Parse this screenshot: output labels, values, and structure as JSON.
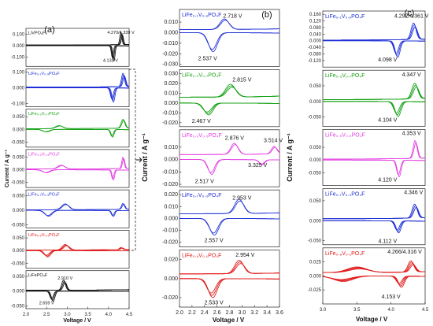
{
  "colors": {
    "black": "#111111",
    "blue": "#1e2fd6",
    "green": "#12a012",
    "magenta": "#e23ae2",
    "red": "#e01818"
  },
  "chart_data": [
    {
      "type": "line",
      "panel_letter": "(a)",
      "xlabel": "Voltage / V",
      "ylabel": "Current / A g⁻¹",
      "xlim": [
        2.0,
        4.5
      ],
      "xticks": [
        "2.0",
        "2.5",
        "3.0",
        "3.5",
        "4.0",
        "4.5"
      ],
      "subpanels": [
        {
          "label": "LiVPO₄F",
          "color": "#111111",
          "ylim": [
            -0.18,
            0.15
          ],
          "yticks": [
            {
              "v": 0.1,
              "t": "0.100"
            },
            {
              "v": 0.0,
              "t": "0.000"
            },
            {
              "v": -0.1,
              "t": "-0.100"
            }
          ],
          "annotations": [
            {
              "text": "4.270/4.339 V",
              "x": 4.3,
              "y": 0.11
            },
            {
              "text": "4.133 V",
              "x": 4.05,
              "y": -0.14
            }
          ],
          "peaks": [
            {
              "v": 4.3,
              "h": 0.11,
              "w": 0.035
            },
            {
              "v": 4.133,
              "h": -0.135,
              "w": 0.035
            }
          ],
          "base": [
            0.0,
            0.005
          ],
          "cycles": 3
        },
        {
          "label": "LiFe₀.₁V₀.₉PO₄F",
          "color": "#1e2fd6",
          "ylim": [
            -0.12,
            0.12
          ],
          "yticks": [
            {
              "v": 0.1,
              "t": "0.100"
            },
            {
              "v": 0.0,
              "t": "0.000"
            },
            {
              "v": -0.1,
              "t": "-0.100"
            }
          ],
          "annotations": [],
          "peaks": [
            {
              "v": 4.35,
              "h": 0.085,
              "w": 0.05
            },
            {
              "v": 4.12,
              "h": -0.09,
              "w": 0.05
            }
          ],
          "base": [
            0.0,
            0.004
          ],
          "cycles": 3
        },
        {
          "label": "LiFe₀.₃V₀.₇PO₄F",
          "color": "#12a012",
          "ylim": [
            -0.07,
            0.08
          ],
          "yticks": [
            {
              "v": 0.05,
              "t": "0.050"
            },
            {
              "v": 0.0,
              "t": "0.000"
            },
            {
              "v": -0.05,
              "t": "-0.050"
            }
          ],
          "annotations": [],
          "peaks": [
            {
              "v": 4.35,
              "h": 0.035,
              "w": 0.06
            },
            {
              "v": 4.1,
              "h": -0.03,
              "w": 0.05
            },
            {
              "v": 2.8,
              "h": 0.012,
              "w": 0.12
            },
            {
              "v": 2.5,
              "h": -0.01,
              "w": 0.12
            }
          ],
          "base": [
            0.0,
            0.003
          ],
          "cycles": 2
        },
        {
          "label": "LiFe₀.₅V₀.₅PO₄F",
          "color": "#e23ae2",
          "ylim": [
            -0.07,
            0.08
          ],
          "yticks": [
            {
              "v": 0.05,
              "t": "0.050"
            },
            {
              "v": 0.0,
              "t": "0.000"
            },
            {
              "v": -0.05,
              "t": "-0.050"
            }
          ],
          "annotations": [],
          "peaks": [
            {
              "v": 4.35,
              "h": 0.045,
              "w": 0.04
            },
            {
              "v": 4.12,
              "h": -0.04,
              "w": 0.04
            },
            {
              "v": 2.85,
              "h": 0.015,
              "w": 0.12
            },
            {
              "v": 2.5,
              "h": -0.012,
              "w": 0.12
            }
          ],
          "base": [
            0.0,
            0.003
          ],
          "cycles": 2
        },
        {
          "label": "LiFe₀.₇V₀.₃PO₄F",
          "color": "#1e2fd6",
          "ylim": [
            -0.06,
            0.07
          ],
          "yticks": [
            {
              "v": 0.05,
              "t": "0.050"
            },
            {
              "v": 0.0,
              "t": "0.000"
            },
            {
              "v": -0.05,
              "t": "-0.050"
            }
          ],
          "annotations": [],
          "peaks": [
            {
              "v": 4.35,
              "h": 0.02,
              "w": 0.05
            },
            {
              "v": 4.12,
              "h": -0.02,
              "w": 0.05
            },
            {
              "v": 2.95,
              "h": 0.02,
              "w": 0.12
            },
            {
              "v": 2.55,
              "h": -0.02,
              "w": 0.12
            }
          ],
          "base": [
            0.0,
            0.002
          ],
          "cycles": 2
        },
        {
          "label": "LiFe₀.₉V₀.₁PO₄F",
          "color": "#e01818",
          "ylim": [
            -0.07,
            0.08
          ],
          "yticks": [
            {
              "v": 0.05,
              "t": "0.050"
            },
            {
              "v": 0.0,
              "t": "0.000"
            },
            {
              "v": -0.05,
              "t": "-0.050"
            }
          ],
          "annotations": [],
          "peaks": [
            {
              "v": 2.95,
              "h": 0.022,
              "w": 0.1
            },
            {
              "v": 2.53,
              "h": -0.025,
              "w": 0.1
            },
            {
              "v": 4.3,
              "h": 0.008,
              "w": 0.05
            }
          ],
          "base": [
            0.0,
            0.002
          ],
          "cycles": 3
        },
        {
          "label": "LiFePO₄F",
          "color": "#111111",
          "ylim": [
            -0.06,
            0.07
          ],
          "yticks": [
            {
              "v": 0.05,
              "t": "0.050"
            },
            {
              "v": 0.0,
              "t": "0.000"
            },
            {
              "v": -0.05,
              "t": "-0.050"
            }
          ],
          "annotations": [
            {
              "text": "2.910 V",
              "x": 2.95,
              "y": 0.04
            },
            {
              "text": "2.659 V",
              "x": 2.5,
              "y": -0.045
            }
          ],
          "peaks": [
            {
              "v": 2.91,
              "h": 0.035,
              "w": 0.06
            },
            {
              "v": 2.659,
              "h": -0.035,
              "w": 0.06
            }
          ],
          "base": [
            0.0,
            0.003
          ],
          "cycles": 3
        }
      ]
    },
    {
      "type": "line",
      "panel_letter": "(b)",
      "xlabel": "Voltage / V",
      "ylabel": "Current / A g⁻¹",
      "xlim": [
        2.0,
        3.6
      ],
      "xticks": [
        "2.0",
        "2.2",
        "2.4",
        "2.6",
        "2.8",
        "3.0",
        "3.2",
        "3.4",
        "3.6"
      ],
      "subpanels": [
        {
          "label": "LiFe₀.₁V₀.₉PO₄F",
          "color": "#1e2fd6",
          "ylim": [
            -0.032,
            0.022
          ],
          "yticks": [
            {
              "v": 0.01,
              "t": "0.010"
            },
            {
              "v": 0.0,
              "t": "0.000"
            },
            {
              "v": -0.01,
              "t": "-0.010"
            },
            {
              "v": -0.02,
              "t": "-0.020"
            },
            {
              "v": -0.03,
              "t": "-0.030"
            }
          ],
          "annotations": [
            {
              "text": "2.718 V",
              "x": 2.85,
              "y": 0.014
            },
            {
              "text": "2.537 V",
              "x": 2.45,
              "y": -0.026
            }
          ],
          "peaks": [
            {
              "v": 2.718,
              "h": 0.01,
              "w": 0.1
            },
            {
              "v": 2.537,
              "h": -0.018,
              "w": 0.1
            }
          ],
          "base": [
            0.0,
            0.003
          ],
          "cycles": 2
        },
        {
          "label": "LiFe₀.₃V₀.₇PO₄F",
          "color": "#12a012",
          "ylim": [
            -0.024,
            0.034
          ],
          "yticks": [
            {
              "v": 0.03,
              "t": "0.030"
            },
            {
              "v": 0.02,
              "t": "0.020"
            },
            {
              "v": 0.01,
              "t": "0.010"
            },
            {
              "v": 0.0,
              "t": "0.000"
            },
            {
              "v": -0.01,
              "t": "-0.010"
            },
            {
              "v": -0.02,
              "t": "-0.020"
            }
          ],
          "annotations": [
            {
              "text": "2.815 V",
              "x": 3.0,
              "y": 0.022
            },
            {
              "text": "2.467 V",
              "x": 2.35,
              "y": -0.02
            }
          ],
          "peaks": [
            {
              "v": 2.815,
              "h": 0.013,
              "w": 0.11
            },
            {
              "v": 2.467,
              "h": -0.012,
              "w": 0.1
            }
          ],
          "base": [
            0.0,
            0.006
          ],
          "cycles": 3
        },
        {
          "label": "LiFe₀.₅V₀.₅PO₄F",
          "color": "#e23ae2",
          "ylim": [
            -0.022,
            0.024
          ],
          "yticks": [
            {
              "v": 0.01,
              "t": "0.010"
            },
            {
              "v": 0.0,
              "t": "0.000"
            },
            {
              "v": -0.01,
              "t": "-0.010"
            },
            {
              "v": -0.02,
              "t": "-0.020"
            }
          ],
          "annotations": [
            {
              "text": "2.876 V",
              "x": 2.88,
              "y": 0.016
            },
            {
              "text": "3.514 V",
              "x": 3.5,
              "y": 0.014
            },
            {
              "text": "3.325 V",
              "x": 3.25,
              "y": -0.006
            },
            {
              "text": "2.517 V",
              "x": 2.4,
              "y": -0.019
            }
          ],
          "peaks": [
            {
              "v": 2.876,
              "h": 0.009,
              "w": 0.08
            },
            {
              "v": 2.517,
              "h": -0.012,
              "w": 0.08
            },
            {
              "v": 3.514,
              "h": 0.006,
              "w": 0.06
            },
            {
              "v": 3.325,
              "h": -0.004,
              "w": 0.06
            }
          ],
          "base": [
            0.0,
            0.004
          ],
          "cycles": 2
        },
        {
          "label": "LiFe₀.₇V₀.₃PO₄F",
          "color": "#1e2fd6",
          "ylim": [
            -0.024,
            0.024
          ],
          "yticks": [
            {
              "v": 0.02,
              "t": "0.020"
            },
            {
              "v": 0.01,
              "t": "0.010"
            },
            {
              "v": 0.0,
              "t": "0.000"
            },
            {
              "v": -0.01,
              "t": "-0.010"
            },
            {
              "v": -0.02,
              "t": "-0.020"
            }
          ],
          "annotations": [
            {
              "text": "2.953 V",
              "x": 3.0,
              "y": 0.016
            },
            {
              "text": "2.557 V",
              "x": 2.55,
              "y": -0.02
            }
          ],
          "peaks": [
            {
              "v": 2.953,
              "h": 0.012,
              "w": 0.1
            },
            {
              "v": 2.557,
              "h": -0.014,
              "w": 0.1
            }
          ],
          "base": [
            0.0,
            0.004
          ],
          "cycles": 2
        },
        {
          "label": "LiFe₀.₉V₀.₁PO₄F",
          "color": "#e01818",
          "ylim": [
            -0.03,
            0.03
          ],
          "yticks": [
            {
              "v": 0.02,
              "t": "0.020"
            },
            {
              "v": 0.0,
              "t": "0.000"
            },
            {
              "v": -0.02,
              "t": "-0.020"
            }
          ],
          "annotations": [
            {
              "text": "2.954 V",
              "x": 3.05,
              "y": 0.023
            },
            {
              "text": "2.533 V",
              "x": 2.55,
              "y": -0.027
            }
          ],
          "peaks": [
            {
              "v": 2.954,
              "h": 0.014,
              "w": 0.1
            },
            {
              "v": 2.533,
              "h": -0.02,
              "w": 0.1
            }
          ],
          "base": [
            0.0,
            0.005
          ],
          "cycles": 3
        }
      ]
    },
    {
      "type": "line",
      "panel_letter": "(c)",
      "xlabel": "Voltage / V",
      "ylabel": "Current / A g⁻¹",
      "xlim": [
        3.0,
        4.5
      ],
      "xticks": [
        "3.0",
        "3.5",
        "4.0",
        "4.5"
      ],
      "subpanels": [
        {
          "label": "LiFe₀.₁V₀.₉PO₄F",
          "color": "#1e2fd6",
          "ylim": [
            -0.16,
            0.18
          ],
          "yticks": [
            {
              "v": 0.16,
              "t": "0.160"
            },
            {
              "v": 0.12,
              "t": "0.120"
            },
            {
              "v": 0.08,
              "t": "0.080"
            },
            {
              "v": 0.04,
              "t": "0.040"
            },
            {
              "v": 0.0,
              "t": "0.000"
            },
            {
              "v": -0.04,
              "t": "-0.040"
            },
            {
              "v": -0.08,
              "t": "-0.080"
            },
            {
              "v": -0.12,
              "t": "-0.120"
            }
          ],
          "annotations": [
            {
              "text": "4.292/4.361 V",
              "x": 4.3,
              "y": 0.14
            },
            {
              "text": "4.098 V",
              "x": 3.95,
              "y": -0.125
            }
          ],
          "peaks": [
            {
              "v": 4.33,
              "h": 0.1,
              "w": 0.05
            },
            {
              "v": 4.098,
              "h": -0.1,
              "w": 0.05
            }
          ],
          "base": [
            0.0,
            0.004
          ],
          "cycles": 3
        },
        {
          "label": "LiFe₀.₃V₀.₇PO₄F",
          "color": "#12a012",
          "ylim": [
            -0.08,
            0.1
          ],
          "yticks": [
            {
              "v": 0.05,
              "t": "0.050"
            },
            {
              "v": 0.0,
              "t": "0.000"
            },
            {
              "v": -0.05,
              "t": "-0.050"
            }
          ],
          "annotations": [
            {
              "text": "4.347 V",
              "x": 4.3,
              "y": 0.08
            },
            {
              "text": "4.104 V",
              "x": 3.95,
              "y": -0.065
            }
          ],
          "peaks": [
            {
              "v": 4.347,
              "h": 0.05,
              "w": 0.06
            },
            {
              "v": 4.104,
              "h": -0.048,
              "w": 0.06
            }
          ],
          "base": [
            0.0,
            0.006
          ],
          "cycles": 3
        },
        {
          "label": "LiFe₀.₅V₀.₅PO₄F",
          "color": "#e23ae2",
          "ylim": [
            -0.1,
            0.12
          ],
          "yticks": [
            {
              "v": 0.05,
              "t": "0.050"
            },
            {
              "v": 0.0,
              "t": "0.000"
            },
            {
              "v": -0.05,
              "t": "-0.050"
            }
          ],
          "annotations": [
            {
              "text": "4.353 V",
              "x": 4.3,
              "y": 0.1
            },
            {
              "text": "4.120 V",
              "x": 3.95,
              "y": -0.085
            }
          ],
          "peaks": [
            {
              "v": 4.353,
              "h": 0.07,
              "w": 0.04
            },
            {
              "v": 4.12,
              "h": -0.065,
              "w": 0.04
            }
          ],
          "base": [
            0.0,
            0.004
          ],
          "cycles": 2
        },
        {
          "label": "LiFe₀.₇V₀.₃PO₄F",
          "color": "#1e2fd6",
          "ylim": [
            -0.06,
            0.08
          ],
          "yticks": [
            {
              "v": 0.05,
              "t": "0.050"
            },
            {
              "v": 0.0,
              "t": "0.000"
            },
            {
              "v": -0.05,
              "t": "-0.050"
            }
          ],
          "annotations": [
            {
              "text": "4.346 V",
              "x": 4.33,
              "y": 0.068
            },
            {
              "text": "4.112 V",
              "x": 3.95,
              "y": -0.055
            }
          ],
          "peaks": [
            {
              "v": 4.346,
              "h": 0.035,
              "w": 0.05
            },
            {
              "v": 4.112,
              "h": -0.03,
              "w": 0.05
            }
          ],
          "base": [
            0.0,
            0.005
          ],
          "cycles": 3
        },
        {
          "label": "LiFe₀.₉V₀.₁PO₄F",
          "color": "#e01818",
          "ylim": [
            -0.05,
            0.05
          ],
          "yticks": [
            {
              "v": 0.025,
              "t": "0.025"
            },
            {
              "v": 0.0,
              "t": "0.000"
            },
            {
              "v": -0.025,
              "t": "-0.025"
            }
          ],
          "annotations": [
            {
              "text": "4.266/4.316 V",
              "x": 4.2,
              "y": 0.04
            },
            {
              "text": "4.153 V",
              "x": 4.0,
              "y": -0.04
            }
          ],
          "peaks": [
            {
              "v": 4.29,
              "h": 0.02,
              "w": 0.06
            },
            {
              "v": 4.153,
              "h": -0.02,
              "w": 0.06
            },
            {
              "v": 3.5,
              "h": 0.01,
              "w": 0.2
            },
            {
              "v": 3.3,
              "h": -0.01,
              "w": 0.2
            }
          ],
          "base": [
            0.0,
            0.006
          ],
          "cycles": 4
        }
      ]
    }
  ]
}
